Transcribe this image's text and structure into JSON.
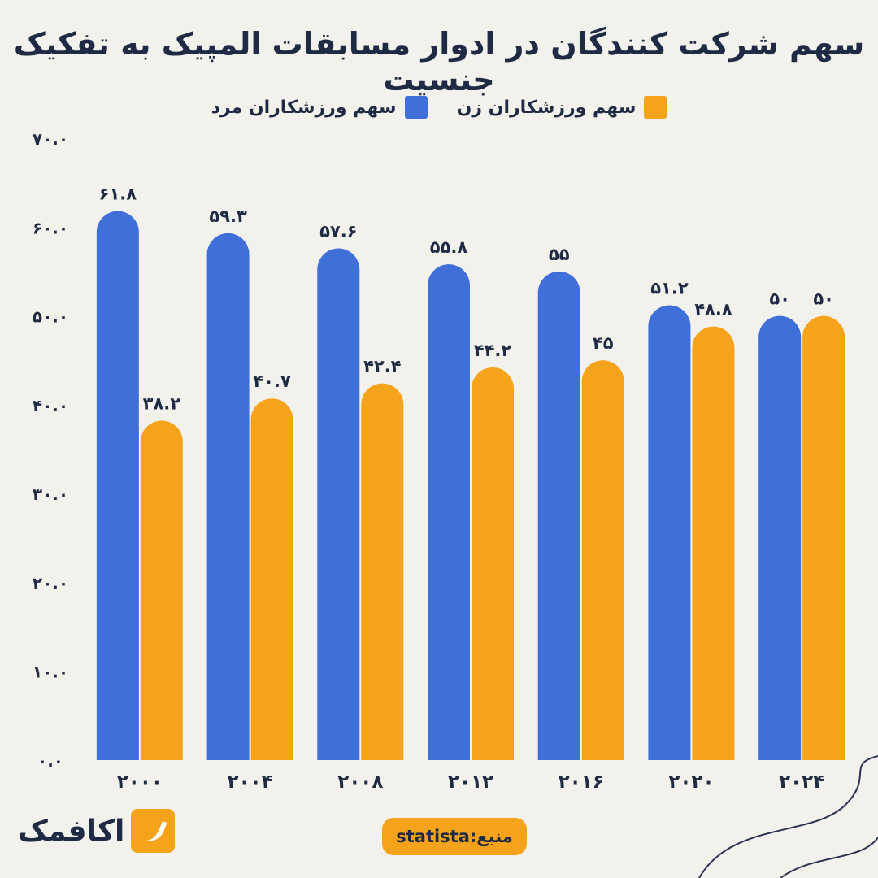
{
  "title": "سهم شرکت کنندگان در ادوار مسابقات المپیک به تفکیک جنسیت",
  "source_label": "منبع:statista",
  "logo_text": "اکافمک",
  "colors": {
    "male": "#3f6fd8",
    "female": "#f5a31a"
  },
  "chart_data": {
    "type": "bar",
    "categories": [
      "۲۰۰۰",
      "۲۰۰۴",
      "۲۰۰۸",
      "۲۰۱۲",
      "۲۰۱۶",
      "۲۰۲۰",
      "۲۰۲۴"
    ],
    "series": [
      {
        "name": "سهم ورزشکاران مرد",
        "values": [
          61.8,
          59.3,
          57.6,
          55.8,
          55,
          51.2,
          50
        ],
        "labels": [
          "۶۱.۸",
          "۵۹.۳",
          "۵۷.۶",
          "۵۵.۸",
          "۵۵",
          "۵۱.۲",
          "۵۰"
        ]
      },
      {
        "name": "سهم ورزشکاران زن",
        "values": [
          38.2,
          40.7,
          42.4,
          44.2,
          45,
          48.8,
          50
        ],
        "labels": [
          "۳۸.۲",
          "۴۰.۷",
          "۴۲.۴",
          "۴۴.۲",
          "۴۵",
          "۴۸.۸",
          "۵۰"
        ]
      }
    ],
    "ylim": [
      0,
      70
    ],
    "yticks": [
      0,
      10,
      20,
      30,
      40,
      50,
      60,
      70
    ],
    "ytick_labels": [
      "۰.۰",
      "۱۰.۰",
      "۲۰.۰",
      "۳۰.۰",
      "۴۰.۰",
      "۵۰.۰",
      "۶۰.۰",
      "۷۰.۰"
    ],
    "legend_position": "top-center",
    "grid": false
  }
}
